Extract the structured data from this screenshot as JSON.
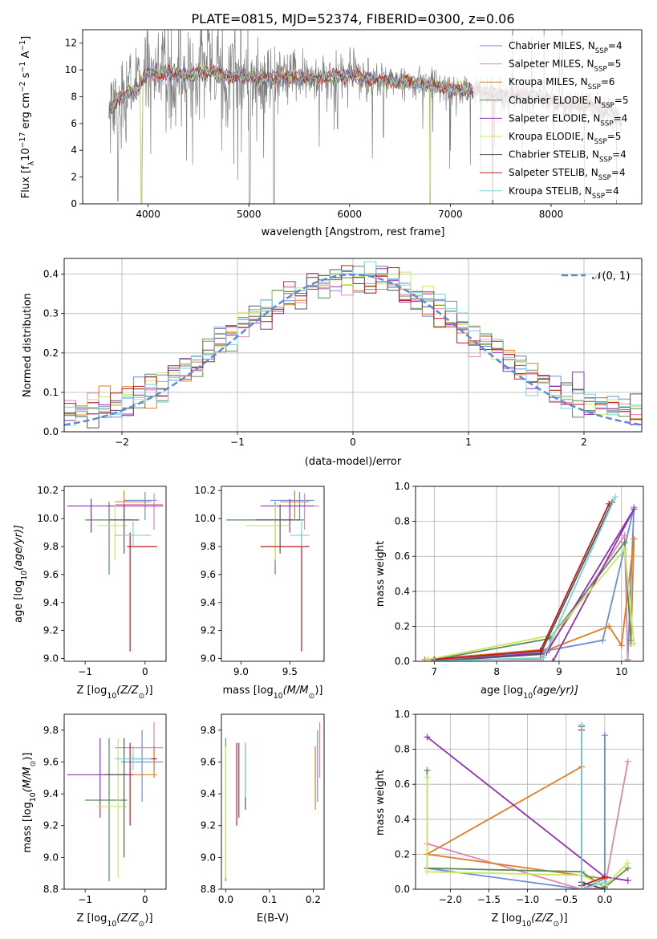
{
  "title": "PLATE=0815, MJD=52374, FIBERID=0300, z=0.06",
  "colors": {
    "chabrier_miles": "#6a8ed8",
    "salpeter_miles": "#e284b0",
    "kroupa_miles": "#e07d22",
    "chabrier_elodie": "#5c8a5c",
    "salpeter_elodie": "#9030b0",
    "kroupa_elodie": "#c8e860",
    "chabrier_stelib": "#555555",
    "salpeter_stelib": "#c01818",
    "kroupa_stelib": "#78d4dc",
    "observed_spectrum": "#808080",
    "gaussian": "#5b8bd8"
  },
  "chart_data": [
    {
      "type": "line",
      "panel": "spectrum",
      "xlabel": "wavelength [Angstrom, rest frame]",
      "ylabel": "Flux [f",
      "ylabel_sub": "λ",
      "ylabel_mid": "10",
      "ylabel_sup1": "−17",
      "ylabel_tail": " erg cm",
      "ylabel_sup2": "−2",
      "ylabel_tail2": " s",
      "ylabel_sup3": "−1",
      "ylabel_tail3": " A",
      "ylabel_sup4": "−1",
      "ylabel_end": "]",
      "xlim": [
        3350,
        8900
      ],
      "ylim": [
        0,
        13
      ],
      "xticks": [
        "4000",
        "5000",
        "6000",
        "7000",
        "8000"
      ],
      "yticks": [
        "0",
        "2",
        "4",
        "6",
        "8",
        "10",
        "12"
      ],
      "legend": [
        {
          "name": "Chabrier MILES, N",
          "sub": "SSP",
          "tail": "=4",
          "color_key": "chabrier_miles"
        },
        {
          "name": "Salpeter MILES, N",
          "sub": "SSP",
          "tail": "=5",
          "color_key": "salpeter_miles"
        },
        {
          "name": "Kroupa MILES, N",
          "sub": "SSP",
          "tail": "=6",
          "color_key": "kroupa_miles"
        },
        {
          "name": "Chabrier ELODIE, N",
          "sub": "SSP",
          "tail": "=5",
          "color_key": "chabrier_elodie"
        },
        {
          "name": "Salpeter ELODIE, N",
          "sub": "SSP",
          "tail": "=4",
          "color_key": "salpeter_elodie"
        },
        {
          "name": "Kroupa ELODIE, N",
          "sub": "SSP",
          "tail": "=5",
          "color_key": "kroupa_elodie"
        },
        {
          "name": "Chabrier STELIB, N",
          "sub": "SSP",
          "tail": "=4",
          "color_key": "chabrier_stelib"
        },
        {
          "name": "Salpeter STELIB, N",
          "sub": "SSP",
          "tail": "=4",
          "color_key": "salpeter_stelib"
        },
        {
          "name": "Kroupa STELIB, N",
          "sub": "SSP",
          "tail": "=4",
          "color_key": "kroupa_stelib"
        }
      ],
      "legend_loc": "upper right",
      "continuum_x": [
        3600,
        3700,
        3800,
        3900,
        4000,
        4200,
        4400,
        4600,
        4800,
        5000,
        5200,
        5400,
        5600,
        5800,
        6000,
        6200,
        6400,
        6600,
        6800,
        7000,
        7200,
        7400,
        7600,
        7800,
        8000,
        8200,
        8400,
        8600,
        8700
      ],
      "continuum_y": [
        6.8,
        7.8,
        8.3,
        8.6,
        9.8,
        9.7,
        9.6,
        9.9,
        9.5,
        9.5,
        9.3,
        9.4,
        9.3,
        9.5,
        9.6,
        9.3,
        9.2,
        9.1,
        8.9,
        8.6,
        8.5,
        8.2,
        8.1,
        8.0,
        7.7,
        7.5,
        7.2,
        7.0,
        6.0
      ],
      "absorption_dips": [
        {
          "x": 3700,
          "y": 0.2
        },
        {
          "x": 3934,
          "y": 0.0
        },
        {
          "x": 5005,
          "y": 0.0
        },
        {
          "x": 5250,
          "y": 0.0
        },
        {
          "x": 5880,
          "y": 5.6
        },
        {
          "x": 6800,
          "y": 0.0
        },
        {
          "x": 7420,
          "y": 0.0
        }
      ]
    },
    {
      "type": "step",
      "panel": "residuals",
      "xlabel": "(data-model)/error",
      "ylabel": "Normed distribution",
      "xlim": [
        -2.5,
        2.5
      ],
      "ylim": [
        0,
        0.44
      ],
      "xticks": [
        "−2",
        "−1",
        "0",
        "1",
        "2"
      ],
      "xtick_values": [
        -2,
        -1,
        0,
        1,
        2
      ],
      "yticks": [
        "0.0",
        "0.1",
        "0.2",
        "0.3",
        "0.4"
      ],
      "ytick_values": [
        0,
        0.1,
        0.2,
        0.3,
        0.4
      ],
      "grid": true,
      "bins": 50,
      "gaussian_label": "𝒩(0, 1)",
      "legend_loc": "upper right"
    },
    {
      "type": "scatter",
      "panel": "age_vs_Z",
      "xlabel": "Z [log",
      "xlabel_sub": "10",
      "xlabel_tail": "(Z/Z",
      "xlabel_sub2": "⊙",
      "xlabel_end": ")]",
      "ylabel": "age  [log",
      "ylabel_sub": "10",
      "ylabel_tail": "(age/yr)]",
      "xlim": [
        -1.35,
        0.35
      ],
      "ylim": [
        8.98,
        10.23
      ],
      "xticks": [
        "−1",
        "0"
      ],
      "xtick_values": [
        -1,
        0
      ],
      "yticks": [
        "9.0",
        "9.2",
        "9.4",
        "9.6",
        "9.8",
        "10.0",
        "10.2"
      ],
      "ytick_values": [
        9.0,
        9.2,
        9.4,
        9.6,
        9.8,
        10.0,
        10.2
      ],
      "points": [
        {
          "key": "chabrier_miles",
          "x": 0.0,
          "y": 10.13,
          "x0": -0.35,
          "x1": 0.2,
          "y0": 9.99,
          "y1": 10.19
        },
        {
          "key": "salpeter_miles",
          "x": 0.15,
          "y": 10.1,
          "x0": -0.5,
          "x1": 0.3,
          "y0": 9.92,
          "y1": 10.18
        },
        {
          "key": "kroupa_miles",
          "x": -0.35,
          "y": 10.12,
          "x0": -0.5,
          "x1": 0.1,
          "y0": 10.0,
          "y1": 10.2
        },
        {
          "key": "chabrier_elodie",
          "x": -0.6,
          "y": 9.99,
          "x0": -1.0,
          "x1": -0.2,
          "y0": 9.6,
          "y1": 10.12
        },
        {
          "key": "salpeter_elodie",
          "x": -0.9,
          "y": 10.09,
          "x0": -1.3,
          "x1": 0.3,
          "y0": 9.9,
          "y1": 10.14
        },
        {
          "key": "kroupa_elodie",
          "x": -0.5,
          "y": 9.95,
          "x0": -0.8,
          "x1": -0.3,
          "y0": 9.7,
          "y1": 10.1
        },
        {
          "key": "chabrier_stelib",
          "x": -0.35,
          "y": 9.99,
          "x0": -0.6,
          "x1": -0.1,
          "y0": 9.75,
          "y1": 10.1
        },
        {
          "key": "salpeter_stelib",
          "x": -0.25,
          "y": 9.8,
          "x0": -0.3,
          "x1": 0.2,
          "y0": 9.05,
          "y1": 9.9
        },
        {
          "key": "kroupa_stelib",
          "x": -0.2,
          "y": 9.88,
          "x0": -0.5,
          "x1": 0.1,
          "y0": 9.8,
          "y1": 9.98
        }
      ]
    },
    {
      "type": "scatter",
      "panel": "age_vs_mass",
      "xlabel": "mass [log",
      "xlabel_sub": "10",
      "xlabel_tail": "(M/M",
      "xlabel_sub2": "⊙",
      "xlabel_end": ")]",
      "xlim": [
        8.8,
        9.85
      ],
      "ylim": [
        8.98,
        10.23
      ],
      "xticks": [
        "9.0",
        "9.5"
      ],
      "xtick_values": [
        9.0,
        9.5
      ],
      "yticks": [
        "9.0",
        "9.2",
        "9.4",
        "9.6",
        "9.8",
        "10.0",
        "10.2"
      ],
      "ytick_values": [
        9.0,
        9.2,
        9.4,
        9.6,
        9.8,
        10.0,
        10.2
      ],
      "points": [
        {
          "key": "chabrier_miles",
          "x": 9.6,
          "y": 10.13,
          "x0": 9.3,
          "x1": 9.75,
          "y0": 9.99,
          "y1": 10.19
        },
        {
          "key": "salpeter_miles",
          "x": 9.65,
          "y": 10.09,
          "x0": 9.4,
          "x1": 9.8,
          "y0": 9.92,
          "y1": 10.18
        },
        {
          "key": "kroupa_miles",
          "x": 9.55,
          "y": 10.12,
          "x0": 9.4,
          "x1": 9.7,
          "y0": 10.0,
          "y1": 10.2
        },
        {
          "key": "chabrier_elodie",
          "x": 9.35,
          "y": 9.99,
          "x0": 8.85,
          "x1": 9.65,
          "y0": 9.6,
          "y1": 10.12
        },
        {
          "key": "salpeter_elodie",
          "x": 9.5,
          "y": 10.09,
          "x0": 9.2,
          "x1": 9.75,
          "y0": 9.9,
          "y1": 10.14
        },
        {
          "key": "kroupa_elodie",
          "x": 9.35,
          "y": 9.95,
          "x0": 9.05,
          "x1": 9.5,
          "y0": 9.7,
          "y1": 10.1
        },
        {
          "key": "chabrier_stelib",
          "x": 9.4,
          "y": 9.99,
          "x0": 9.15,
          "x1": 9.6,
          "y0": 9.75,
          "y1": 10.1
        },
        {
          "key": "salpeter_stelib",
          "x": 9.62,
          "y": 9.8,
          "x0": 9.2,
          "x1": 9.7,
          "y0": 9.05,
          "y1": 9.9
        },
        {
          "key": "kroupa_stelib",
          "x": 9.62,
          "y": 9.88,
          "x0": 9.5,
          "x1": 9.7,
          "y0": 9.8,
          "y1": 9.98
        }
      ]
    },
    {
      "type": "line",
      "panel": "weight_vs_age",
      "xlabel": "age  [log",
      "xlabel_sub": "10",
      "xlabel_tail": "(age/yr)]",
      "ylabel": "mass weight",
      "xlim": [
        6.7,
        10.35
      ],
      "ylim": [
        0,
        1
      ],
      "xticks": [
        "7",
        "8",
        "9",
        "10"
      ],
      "xtick_values": [
        7,
        8,
        9,
        10
      ],
      "yticks": [
        "0.0",
        "0.2",
        "0.4",
        "0.6",
        "0.8",
        "1.0"
      ],
      "ytick_values": [
        0,
        0.2,
        0.4,
        0.6,
        0.8,
        1.0
      ],
      "grid": true,
      "series": [
        {
          "key": "chabrier_miles",
          "x": [
            7.0,
            8.8,
            9.7,
            10.2,
            10.1
          ],
          "y": [
            0.0,
            0.06,
            0.12,
            0.88,
            0.01
          ]
        },
        {
          "key": "salpeter_miles",
          "x": [
            6.9,
            8.7,
            10.05,
            10.1
          ],
          "y": [
            0.01,
            0.01,
            0.72,
            0.0
          ]
        },
        {
          "key": "kroupa_miles",
          "x": [
            6.85,
            8.85,
            9.8,
            10.0,
            10.2,
            10.15
          ],
          "y": [
            0.01,
            0.07,
            0.2,
            0.09,
            0.7,
            0.1
          ]
        },
        {
          "key": "chabrier_elodie",
          "x": [
            7.0,
            8.85,
            10.05,
            10.15
          ],
          "y": [
            0.01,
            0.13,
            0.68,
            0.12
          ]
        },
        {
          "key": "salpeter_elodie",
          "x": [
            7.0,
            8.8,
            10.2,
            8.9
          ],
          "y": [
            0.0,
            0.05,
            0.87,
            0.0
          ]
        },
        {
          "key": "kroupa_elodie",
          "x": [
            6.9,
            8.9,
            10.05,
            10.2
          ],
          "y": [
            0.01,
            0.15,
            0.64,
            0.1
          ]
        },
        {
          "key": "chabrier_stelib",
          "x": [
            7.0,
            8.7,
            9.85
          ],
          "y": [
            0.0,
            0.04,
            0.91
          ]
        },
        {
          "key": "salpeter_stelib",
          "x": [
            7.0,
            8.7,
            9.8
          ],
          "y": [
            0.01,
            0.06,
            0.9
          ]
        },
        {
          "key": "kroupa_stelib",
          "x": [
            7.0,
            8.75,
            9.9
          ],
          "y": [
            0.0,
            0.02,
            0.94
          ]
        }
      ]
    },
    {
      "type": "scatter",
      "panel": "mass_vs_Z",
      "xlabel": "Z [log",
      "xlabel_sub": "10",
      "xlabel_tail": "(Z/Z",
      "xlabel_sub2": "⊙",
      "xlabel_end": ")]",
      "ylabel": "mass [log",
      "ylabel_sub": "10",
      "ylabel_tail": "(M/M",
      "ylabel_sub2": "⊙",
      "ylabel_end": ")]",
      "xlim": [
        -1.35,
        0.35
      ],
      "ylim": [
        8.8,
        9.9
      ],
      "xticks": [
        "−1",
        "0"
      ],
      "xtick_values": [
        -1,
        0
      ],
      "yticks": [
        "8.8",
        "9.0",
        "9.2",
        "9.4",
        "9.6",
        "9.8"
      ],
      "ytick_values": [
        8.8,
        9.0,
        9.2,
        9.4,
        9.6,
        9.8
      ],
      "points": [
        {
          "key": "chabrier_miles",
          "x": -0.05,
          "y": 9.6,
          "x0": -0.4,
          "x1": 0.3,
          "y0": 9.35,
          "y1": 9.8
        },
        {
          "key": "salpeter_miles",
          "x": 0.15,
          "y": 9.69,
          "x0": -0.5,
          "x1": 0.3,
          "y0": 9.55,
          "y1": 9.85
        },
        {
          "key": "kroupa_miles",
          "x": 0.15,
          "y": 9.52,
          "x0": -0.5,
          "x1": 0.2,
          "y0": 9.5,
          "y1": 9.7
        },
        {
          "key": "chabrier_elodie",
          "x": -0.6,
          "y": 9.36,
          "x0": -1.0,
          "x1": -0.3,
          "y0": 8.85,
          "y1": 9.75
        },
        {
          "key": "salpeter_elodie",
          "x": -0.75,
          "y": 9.52,
          "x0": -1.3,
          "x1": -0.2,
          "y0": 9.25,
          "y1": 9.75
        },
        {
          "key": "kroupa_elodie",
          "x": -0.45,
          "y": 9.32,
          "x0": -0.8,
          "x1": -0.3,
          "y0": 8.87,
          "y1": 9.75
        },
        {
          "key": "chabrier_stelib",
          "x": -0.35,
          "y": 9.52,
          "x0": -0.7,
          "x1": -0.3,
          "y0": 9.0,
          "y1": 9.75
        },
        {
          "key": "salpeter_stelib",
          "x": -0.25,
          "y": 9.62,
          "x0": -0.3,
          "x1": 0.2,
          "y0": 9.2,
          "y1": 9.72
        },
        {
          "key": "kroupa_stelib",
          "x": -0.2,
          "y": 9.62,
          "x0": -0.5,
          "x1": 0.1,
          "y0": 9.55,
          "y1": 9.7
        }
      ]
    },
    {
      "type": "scatter",
      "panel": "mass_vs_ebv",
      "xlabel": "E(B-V)",
      "xlim": [
        -0.01,
        0.225
      ],
      "ylim": [
        8.8,
        9.9
      ],
      "xticks": [
        "0.0",
        "0.1",
        "0.2"
      ],
      "xtick_values": [
        0.0,
        0.1,
        0.2
      ],
      "yticks": [
        "8.8",
        "9.0",
        "9.2",
        "9.4",
        "9.6",
        "9.8"
      ],
      "ytick_values": [
        8.8,
        9.0,
        9.2,
        9.4,
        9.6,
        9.8
      ],
      "points": [
        {
          "key": "chabrier_miles",
          "x": 0.21,
          "y": 9.6,
          "y0": 9.35,
          "y1": 9.8
        },
        {
          "key": "salpeter_miles",
          "x": 0.215,
          "y": 9.7,
          "y0": 9.5,
          "y1": 9.85
        },
        {
          "key": "kroupa_miles",
          "x": 0.205,
          "y": 9.52,
          "y0": 9.3,
          "y1": 9.7
        },
        {
          "key": "chabrier_elodie",
          "x": 0.0,
          "y": 9.36,
          "y0": 8.85,
          "y1": 9.75
        },
        {
          "key": "salpeter_elodie",
          "x": 0.03,
          "y": 9.52,
          "y0": 9.25,
          "y1": 9.72
        },
        {
          "key": "kroupa_elodie",
          "x": 0.0,
          "y": 9.32,
          "y0": 8.87,
          "y1": 9.7
        },
        {
          "key": "chabrier_stelib",
          "x": 0.045,
          "y": 9.52,
          "y0": 9.3,
          "y1": 9.72
        },
        {
          "key": "salpeter_stelib",
          "x": 0.025,
          "y": 9.5,
          "y0": 9.2,
          "y1": 9.72
        },
        {
          "key": "kroupa_stelib",
          "x": 0.045,
          "y": 9.6,
          "y0": 9.38,
          "y1": 9.72
        }
      ]
    },
    {
      "type": "line",
      "panel": "weight_vs_Z",
      "xlabel": "Z [log",
      "xlabel_sub": "10",
      "xlabel_tail": "(Z/Z",
      "xlabel_sub2": "⊙",
      "xlabel_end": ")]",
      "ylabel": "mass weight",
      "xlim": [
        -2.45,
        0.5
      ],
      "ylim": [
        0,
        1
      ],
      "xticks": [
        "−2.0",
        "−1.5",
        "−1.0",
        "−0.5",
        "0.0"
      ],
      "xtick_values": [
        -2.0,
        -1.5,
        -1.0,
        -0.5,
        0.0
      ],
      "yticks": [
        "0.0",
        "0.2",
        "0.4",
        "0.6",
        "0.8",
        "1.0"
      ],
      "ytick_values": [
        0,
        0.2,
        0.4,
        0.6,
        0.8,
        1.0
      ],
      "grid": true,
      "series": [
        {
          "key": "chabrier_miles",
          "x": [
            -2.3,
            -0.3,
            0.0,
            0.0
          ],
          "y": [
            0.12,
            0.0,
            0.06,
            0.88
          ]
        },
        {
          "key": "salpeter_miles",
          "x": [
            -2.3,
            -0.3,
            0.0,
            0.3
          ],
          "y": [
            0.26,
            0.0,
            0.01,
            0.73
          ]
        },
        {
          "key": "kroupa_miles",
          "x": [
            -2.3,
            -0.3,
            -2.3,
            0.0
          ],
          "y": [
            0.2,
            0.7,
            0.2,
            0.06
          ]
        },
        {
          "key": "chabrier_elodie",
          "x": [
            -2.3,
            -2.3,
            -0.3,
            0.0,
            0.3
          ],
          "y": [
            0.68,
            0.12,
            0.1,
            0.01,
            0.12
          ]
        },
        {
          "key": "salpeter_elodie",
          "x": [
            -2.3,
            0.0,
            0.3
          ],
          "y": [
            0.87,
            0.07,
            0.05
          ]
        },
        {
          "key": "kroupa_elodie",
          "x": [
            -2.3,
            -2.3,
            -0.3,
            0.0,
            0.3
          ],
          "y": [
            0.64,
            0.1,
            0.08,
            0.02,
            0.15
          ]
        },
        {
          "key": "chabrier_stelib",
          "x": [
            -0.3,
            -0.3,
            0.0
          ],
          "y": [
            0.93,
            0.04,
            0.0
          ]
        },
        {
          "key": "salpeter_stelib",
          "x": [
            -0.3,
            -0.3,
            0.0
          ],
          "y": [
            0.91,
            0.02,
            0.07
          ]
        },
        {
          "key": "kroupa_stelib",
          "x": [
            -0.3,
            -0.3,
            0.0
          ],
          "y": [
            0.94,
            0.0,
            0.04
          ]
        }
      ]
    }
  ]
}
